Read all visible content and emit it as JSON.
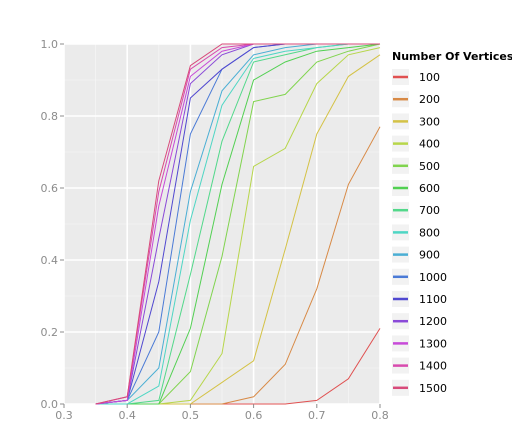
{
  "chart_data": {
    "type": "line",
    "title": "",
    "xlabel": "",
    "ylabel": "",
    "xlim": [
      0.3,
      0.8
    ],
    "ylim": [
      0.0,
      1.0
    ],
    "x_ticks": [
      "0.3",
      "0.4",
      "0.5",
      "0.6",
      "0.7",
      "0.8"
    ],
    "y_ticks": [
      "0.0",
      "0.2",
      "0.4",
      "0.6",
      "0.8",
      "1.0"
    ],
    "grid": true,
    "legend_position": "right",
    "legend_title": "Number Of Vertices",
    "x": [
      0.35,
      0.4,
      0.45,
      0.5,
      0.55,
      0.6,
      0.65,
      0.7,
      0.75,
      0.8
    ],
    "series": [
      {
        "name": "100",
        "color": "#e05050",
        "values": [
          0,
          0,
          0,
          0,
          0,
          0,
          0,
          0.01,
          0.07,
          0.21
        ]
      },
      {
        "name": "200",
        "color": "#d88a46",
        "values": [
          0,
          0,
          0,
          0,
          0,
          0.02,
          0.11,
          0.32,
          0.61,
          0.77
        ]
      },
      {
        "name": "300",
        "color": "#d4c246",
        "values": [
          0,
          0,
          0,
          0,
          0.06,
          0.12,
          0.43,
          0.75,
          0.91,
          0.97
        ]
      },
      {
        "name": "400",
        "color": "#b7d64a",
        "values": [
          0,
          0,
          0,
          0.01,
          0.14,
          0.66,
          0.71,
          0.89,
          0.97,
          0.99
        ]
      },
      {
        "name": "500",
        "color": "#80d44e",
        "values": [
          0,
          0,
          0,
          0.09,
          0.41,
          0.84,
          0.86,
          0.95,
          0.98,
          1.0
        ]
      },
      {
        "name": "600",
        "color": "#52d052",
        "values": [
          0,
          0,
          0,
          0.21,
          0.61,
          0.9,
          0.95,
          0.98,
          0.99,
          1.0
        ]
      },
      {
        "name": "700",
        "color": "#52d88a",
        "values": [
          0,
          0,
          0.01,
          0.36,
          0.73,
          0.95,
          0.97,
          0.99,
          1.0,
          1.0
        ]
      },
      {
        "name": "800",
        "color": "#4ed6c4",
        "values": [
          0,
          0,
          0.05,
          0.51,
          0.83,
          0.96,
          0.98,
          0.99,
          1.0,
          1.0
        ]
      },
      {
        "name": "900",
        "color": "#4aaed4",
        "values": [
          0,
          0.01,
          0.1,
          0.59,
          0.87,
          0.97,
          0.99,
          1.0,
          1.0,
          1.0
        ]
      },
      {
        "name": "1000",
        "color": "#4a7ad6",
        "values": [
          0,
          0.01,
          0.2,
          0.75,
          0.93,
          0.99,
          1.0,
          1.0,
          1.0,
          1.0
        ]
      },
      {
        "name": "1100",
        "color": "#5048d0",
        "values": [
          0,
          0.01,
          0.34,
          0.85,
          0.93,
          0.99,
          1.0,
          1.0,
          1.0,
          1.0
        ]
      },
      {
        "name": "1200",
        "color": "#8a4ad8",
        "values": [
          0,
          0.01,
          0.46,
          0.89,
          0.97,
          1.0,
          1.0,
          1.0,
          1.0,
          1.0
        ]
      },
      {
        "name": "1300",
        "color": "#c74ad8",
        "values": [
          0,
          0.01,
          0.55,
          0.91,
          0.98,
          1.0,
          1.0,
          1.0,
          1.0,
          1.0
        ]
      },
      {
        "name": "1400",
        "color": "#d84aae",
        "values": [
          0,
          0.02,
          0.59,
          0.93,
          0.99,
          1.0,
          1.0,
          1.0,
          1.0,
          1.0
        ]
      },
      {
        "name": "1500",
        "color": "#d84a7a",
        "values": [
          0,
          0.02,
          0.62,
          0.94,
          1.0,
          1.0,
          1.0,
          1.0,
          1.0,
          1.0
        ]
      }
    ]
  }
}
